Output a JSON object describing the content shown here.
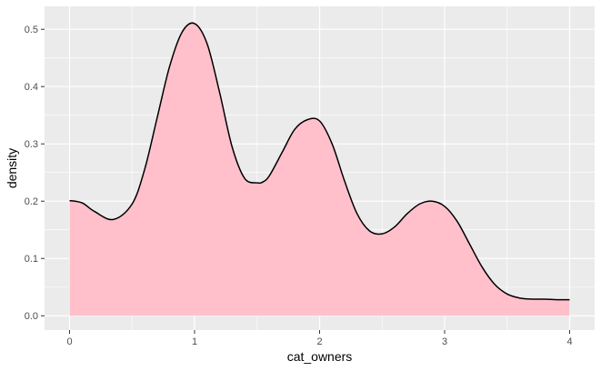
{
  "chart_data": {
    "type": "area",
    "xlabel": "cat_owners",
    "ylabel": "density",
    "xlim": [
      -0.2,
      4.2
    ],
    "ylim": [
      -0.025,
      0.54
    ],
    "x_ticks": [
      0,
      1,
      2,
      3,
      4
    ],
    "y_ticks": [
      0.0,
      0.1,
      0.2,
      0.3,
      0.4,
      0.5
    ],
    "x_tick_labels": [
      "0",
      "1",
      "2",
      "3",
      "4"
    ],
    "y_tick_labels": [
      "0.0",
      "0.1",
      "0.2",
      "0.3",
      "0.4",
      "0.5"
    ],
    "grid": true,
    "background": "#ebebeb",
    "fill_color": "#ffc0cb",
    "line_color": "#000000",
    "series": [
      {
        "x": [
          0,
          0.1,
          0.2,
          0.35,
          0.5,
          0.6,
          0.7,
          0.8,
          0.9,
          1.0,
          1.1,
          1.2,
          1.3,
          1.4,
          1.5,
          1.55,
          1.6,
          1.7,
          1.8,
          1.9,
          2.0,
          2.1,
          2.2,
          2.3,
          2.4,
          2.5,
          2.6,
          2.7,
          2.8,
          2.9,
          3.0,
          3.1,
          3.2,
          3.3,
          3.4,
          3.5,
          3.6,
          3.7,
          3.8,
          3.9,
          4.0
        ],
        "y": [
          0.201,
          0.197,
          0.182,
          0.168,
          0.195,
          0.255,
          0.345,
          0.435,
          0.495,
          0.51,
          0.475,
          0.39,
          0.295,
          0.24,
          0.232,
          0.234,
          0.245,
          0.285,
          0.325,
          0.342,
          0.34,
          0.3,
          0.235,
          0.178,
          0.148,
          0.143,
          0.155,
          0.178,
          0.195,
          0.2,
          0.191,
          0.165,
          0.125,
          0.085,
          0.055,
          0.038,
          0.031,
          0.029,
          0.029,
          0.028,
          0.028
        ]
      }
    ]
  }
}
